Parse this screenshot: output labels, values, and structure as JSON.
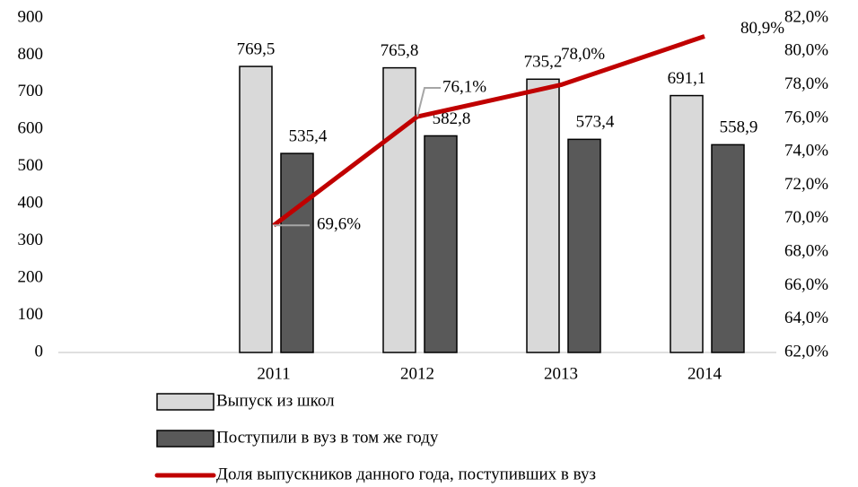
{
  "chart_data": {
    "type": "bar",
    "categories": [
      null,
      "2011",
      "2012",
      "2013",
      "2014"
    ],
    "series": [
      {
        "name": "Выпуск из школ",
        "color": "#d9d9d9",
        "values": [
          null,
          769.5,
          765.8,
          735.2,
          691.1
        ],
        "value_labels": [
          null,
          "769,5",
          "765,8",
          "735,2",
          "691,1"
        ]
      },
      {
        "name": "Поступили в вуз в том же году",
        "color": "#595959",
        "values": [
          null,
          535.4,
          582.8,
          573.4,
          558.9
        ],
        "value_labels": [
          null,
          "535,4",
          "582,8",
          "573,4",
          "558,9"
        ]
      },
      {
        "name": "Доля выпускников данного года, поступивших в вуз",
        "type": "line",
        "axis": "y2",
        "color": "#c00000",
        "values": [
          null,
          69.6,
          76.1,
          78.0,
          80.9
        ],
        "value_labels": [
          null,
          "69,6%",
          "76,1%",
          "78,0%",
          "80,9%"
        ]
      }
    ],
    "ylim": [
      0,
      900
    ],
    "yticks": [
      0,
      100,
      200,
      300,
      400,
      500,
      600,
      700,
      800,
      900
    ],
    "y2lim": [
      62,
      82
    ],
    "y2ticks": [
      {
        "value": 62,
        "label": "62,0%"
      },
      {
        "value": 64,
        "label": "64,0%"
      },
      {
        "value": 66,
        "label": "66,0%"
      },
      {
        "value": 68,
        "label": "68,0%"
      },
      {
        "value": 70,
        "label": "70,0%"
      },
      {
        "value": 72,
        "label": "72,0%"
      },
      {
        "value": 74,
        "label": "74,0%"
      },
      {
        "value": 76,
        "label": "76,0%"
      },
      {
        "value": 78,
        "label": "78,0%"
      },
      {
        "value": 80,
        "label": "80,0%"
      },
      {
        "value": 82,
        "label": "82,0%"
      }
    ],
    "grid": false,
    "legend": "bottom"
  }
}
